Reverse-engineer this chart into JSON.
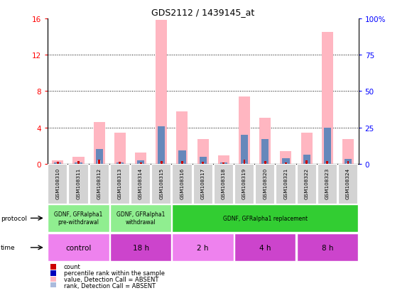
{
  "title": "GDS2112 / 1439145_at",
  "samples": [
    "GSM108310",
    "GSM108311",
    "GSM108312",
    "GSM108313",
    "GSM108314",
    "GSM108315",
    "GSM108316",
    "GSM108317",
    "GSM108318",
    "GSM108319",
    "GSM108320",
    "GSM108321",
    "GSM108322",
    "GSM108323",
    "GSM108324"
  ],
  "pink_bars": [
    0.35,
    0.75,
    4.6,
    3.4,
    1.2,
    15.8,
    5.8,
    2.7,
    0.9,
    7.4,
    5.1,
    1.4,
    3.4,
    14.5,
    2.7
  ],
  "red_bars": [
    0.25,
    0.28,
    0.45,
    0.22,
    0.18,
    0.28,
    0.28,
    0.22,
    0.18,
    0.45,
    0.28,
    0.18,
    0.35,
    0.28,
    0.28
  ],
  "blue_bars": [
    0.12,
    0.12,
    1.6,
    0.12,
    0.35,
    4.1,
    1.5,
    0.8,
    0.12,
    3.2,
    2.7,
    0.6,
    1.0,
    4.0,
    0.5
  ],
  "lightblue_bars": [
    0.08,
    0.08,
    0.35,
    0.08,
    0.08,
    0.08,
    0.08,
    0.08,
    0.08,
    0.08,
    0.08,
    0.08,
    0.08,
    0.08,
    0.08
  ],
  "ylim_left": [
    0,
    16
  ],
  "ylim_right": [
    0,
    100
  ],
  "yticks_left": [
    0,
    4,
    8,
    12,
    16
  ],
  "yticks_right": [
    0,
    25,
    50,
    75,
    100
  ],
  "ytick_labels_right": [
    "0",
    "25",
    "50",
    "75",
    "100%"
  ],
  "protocol_groups": [
    {
      "label": "GDNF, GFRalpha1\npre-withdrawal",
      "start": 0,
      "end": 3,
      "color": "#90ee90"
    },
    {
      "label": "GDNF, GFRalpha1\nwithdrawal",
      "start": 3,
      "end": 6,
      "color": "#90ee90"
    },
    {
      "label": "GDNF, GFRalpha1 replacement",
      "start": 6,
      "end": 15,
      "color": "#32cd32"
    }
  ],
  "time_groups": [
    {
      "label": "control",
      "start": 0,
      "end": 3,
      "color": "#ee82ee"
    },
    {
      "label": "18 h",
      "start": 3,
      "end": 6,
      "color": "#cc44cc"
    },
    {
      "label": "2 h",
      "start": 6,
      "end": 9,
      "color": "#ee82ee"
    },
    {
      "label": "4 h",
      "start": 9,
      "end": 12,
      "color": "#cc44cc"
    },
    {
      "label": "8 h",
      "start": 12,
      "end": 15,
      "color": "#cc44cc"
    }
  ],
  "pink_color": "#ffb6c1",
  "red_color": "#cc0000",
  "blue_color": "#6688bb",
  "lightblue_color": "#aabbdd",
  "sample_bg_color": "#d3d3d3",
  "legend_items": [
    {
      "label": "count",
      "color": "#cc0000"
    },
    {
      "label": "percentile rank within the sample",
      "color": "#0000bb"
    },
    {
      "label": "value, Detection Call = ABSENT",
      "color": "#ffb6c1"
    },
    {
      "label": "rank, Detection Call = ABSENT",
      "color": "#aabbdd"
    }
  ]
}
